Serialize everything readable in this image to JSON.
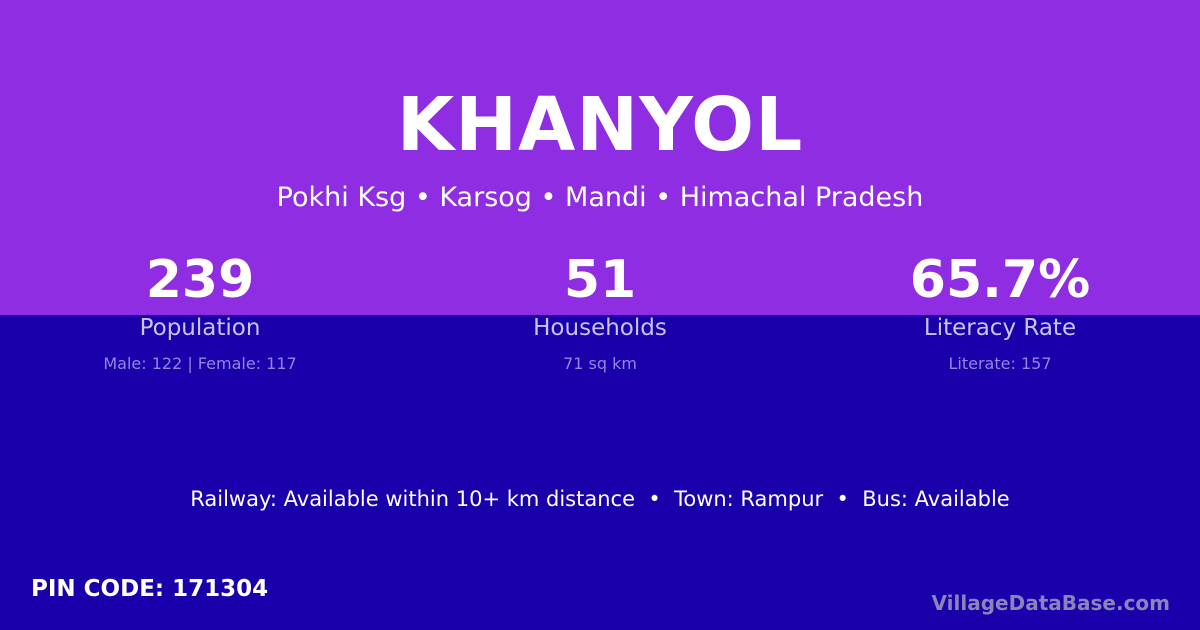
{
  "colors": {
    "top_background": "#8e2de2",
    "bottom_background": "#1900aa"
  },
  "village": {
    "name": "KHANYOL",
    "location": "Pokhi Ksg • Karsog • Mandi • Himachal Pradesh"
  },
  "stats": [
    {
      "value": "239",
      "label": "Population",
      "detail": "Male: 122 | Female: 117"
    },
    {
      "value": "51",
      "label": "Households",
      "detail": "71 sq km"
    },
    {
      "value": "65.7%",
      "label": "Literacy Rate",
      "detail": "Literate: 157"
    }
  ],
  "facilities": "Railway: Available within 10+ km distance  •  Town: Rampur  •  Bus: Available",
  "pin_code": "PIN CODE: 171304",
  "brand": "VillageDataBase.com"
}
